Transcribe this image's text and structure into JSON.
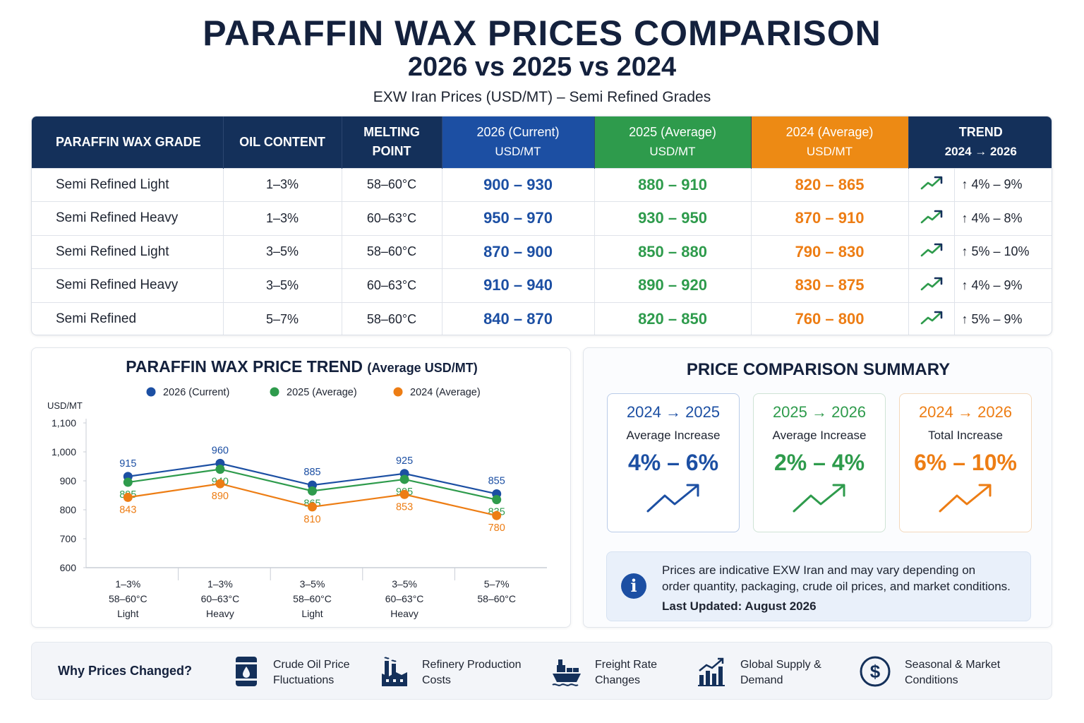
{
  "header": {
    "title": "PARAFFIN WAX PRICES COMPARISON",
    "subtitle": "2026 vs 2025 vs 2024",
    "caption": "EXW Iran Prices (USD/MT) – Semi Refined Grades"
  },
  "colors": {
    "navy": "#14305a",
    "blue_2026": "#1c4fa3",
    "green_2025": "#2e9b4c",
    "orange_2024": "#ed7d14"
  },
  "table": {
    "headers": {
      "grade": "PARAFFIN WAX GRADE",
      "oil": "OIL CONTENT",
      "melting": "MELTING POINT",
      "y2026": "2026 (Current)",
      "y2026_unit": "USD/MT",
      "y2025": "2025 (Average)",
      "y2025_unit": "USD/MT",
      "y2024": "2024 (Average)",
      "y2024_unit": "USD/MT",
      "trend": "TREND",
      "trend_sub": "2024 → 2026"
    },
    "rows": [
      {
        "grade": "Semi Refined Light",
        "oil": "1–3%",
        "melting": "58–60°C",
        "p2026": "900 – 930",
        "p2025": "880 – 910",
        "p2024": "820 – 865",
        "trend_icon": "trend-up-icon",
        "trend": "↑ 4% – 9%"
      },
      {
        "grade": "Semi Refined Heavy",
        "oil": "1–3%",
        "melting": "60–63°C",
        "p2026": "950 – 970",
        "p2025": "930 – 950",
        "p2024": "870 – 910",
        "trend_icon": "trend-up-icon",
        "trend": "↑ 4% – 8%"
      },
      {
        "grade": "Semi Refined Light",
        "oil": "3–5%",
        "melting": "58–60°C",
        "p2026": "870 – 900",
        "p2025": "850 – 880",
        "p2024": "790 – 830",
        "trend_icon": "trend-up-icon",
        "trend": "↑ 5% – 10%"
      },
      {
        "grade": "Semi Refined Heavy",
        "oil": "3–5%",
        "melting": "60–63°C",
        "p2026": "910 – 940",
        "p2025": "890 – 920",
        "p2024": "830 – 875",
        "trend_icon": "trend-up-icon",
        "trend": "↑ 4% – 9%"
      },
      {
        "grade": "Semi Refined",
        "oil": "5–7%",
        "melting": "58–60°C",
        "p2026": "840 – 870",
        "p2025": "820 – 850",
        "p2024": "760 – 800",
        "trend_icon": "trend-up-icon",
        "trend": "↑ 5% – 9%"
      }
    ]
  },
  "chart_data": {
    "type": "line",
    "title": "PARAFFIN WAX PRICE TREND",
    "title_suffix": "(Average USD/MT)",
    "ylabel": "USD/MT",
    "ylim": [
      600,
      1100
    ],
    "yticks": [
      "600",
      "700",
      "800",
      "900",
      "1,000",
      "1,100"
    ],
    "ytick_values": [
      600,
      700,
      800,
      900,
      1000,
      1100
    ],
    "grid": false,
    "legend_position": "top",
    "categories": [
      [
        "1–3%",
        "58–60°C",
        "Light"
      ],
      [
        "1–3%",
        "60–63°C",
        "Heavy"
      ],
      [
        "3–5%",
        "58–60°C",
        "Light"
      ],
      [
        "3–5%",
        "60–63°C",
        "Heavy"
      ],
      [
        "5–7%",
        "58–60°C",
        ""
      ]
    ],
    "series": [
      {
        "name": "2026 (Current)",
        "color": "#1c4fa3",
        "values": [
          915,
          960,
          885,
          925,
          855
        ],
        "labels": [
          "915",
          "960",
          "885",
          "925",
          "855"
        ],
        "label_pos": "above"
      },
      {
        "name": "2025 (Average)",
        "color": "#2e9b4c",
        "values": [
          895,
          940,
          865,
          905,
          835
        ],
        "labels": [
          "895",
          "940",
          "865",
          "905",
          "835"
        ],
        "label_pos": "below"
      },
      {
        "name": "2024 (Average)",
        "color": "#ed7d14",
        "values": [
          843,
          890,
          810,
          853,
          780
        ],
        "labels": [
          "843",
          "890",
          "810",
          "853",
          "780"
        ],
        "label_pos": "below"
      }
    ]
  },
  "summary": {
    "title": "PRICE COMPARISON SUMMARY",
    "cards": [
      {
        "period": "2024 → 2025",
        "label": "Average Increase",
        "value": "4% – 6%",
        "color": "#1c4fa3",
        "icon": "trend-up-icon"
      },
      {
        "period": "2025 → 2026",
        "label": "Average Increase",
        "value": "2% – 4%",
        "color": "#2e9b4c",
        "icon": "trend-up-icon"
      },
      {
        "period": "2024 → 2026",
        "label": "Total Increase",
        "value": "6% – 10%",
        "color": "#ed7d14",
        "icon": "trend-up-icon"
      }
    ],
    "note_line1": "Prices are indicative EXW Iran and may vary depending on",
    "note_line2": "order quantity, packaging, crude oil prices, and market conditions.",
    "updated": "Last Updated: August 2026",
    "note_icon": "info-icon"
  },
  "why": {
    "label": "Why Prices Changed?",
    "items": [
      {
        "icon": "oil-barrel-icon",
        "line1": "Crude Oil Price",
        "line2": "Fluctuations"
      },
      {
        "icon": "refinery-icon",
        "line1": "Refinery Production",
        "line2": "Costs"
      },
      {
        "icon": "cargo-ship-icon",
        "line1": "Freight Rate",
        "line2": "Changes"
      },
      {
        "icon": "bar-chart-icon",
        "line1": "Global Supply &",
        "line2": "Demand"
      },
      {
        "icon": "dollar-icon",
        "line1": "Seasonal & Market",
        "line2": "Conditions"
      }
    ]
  }
}
